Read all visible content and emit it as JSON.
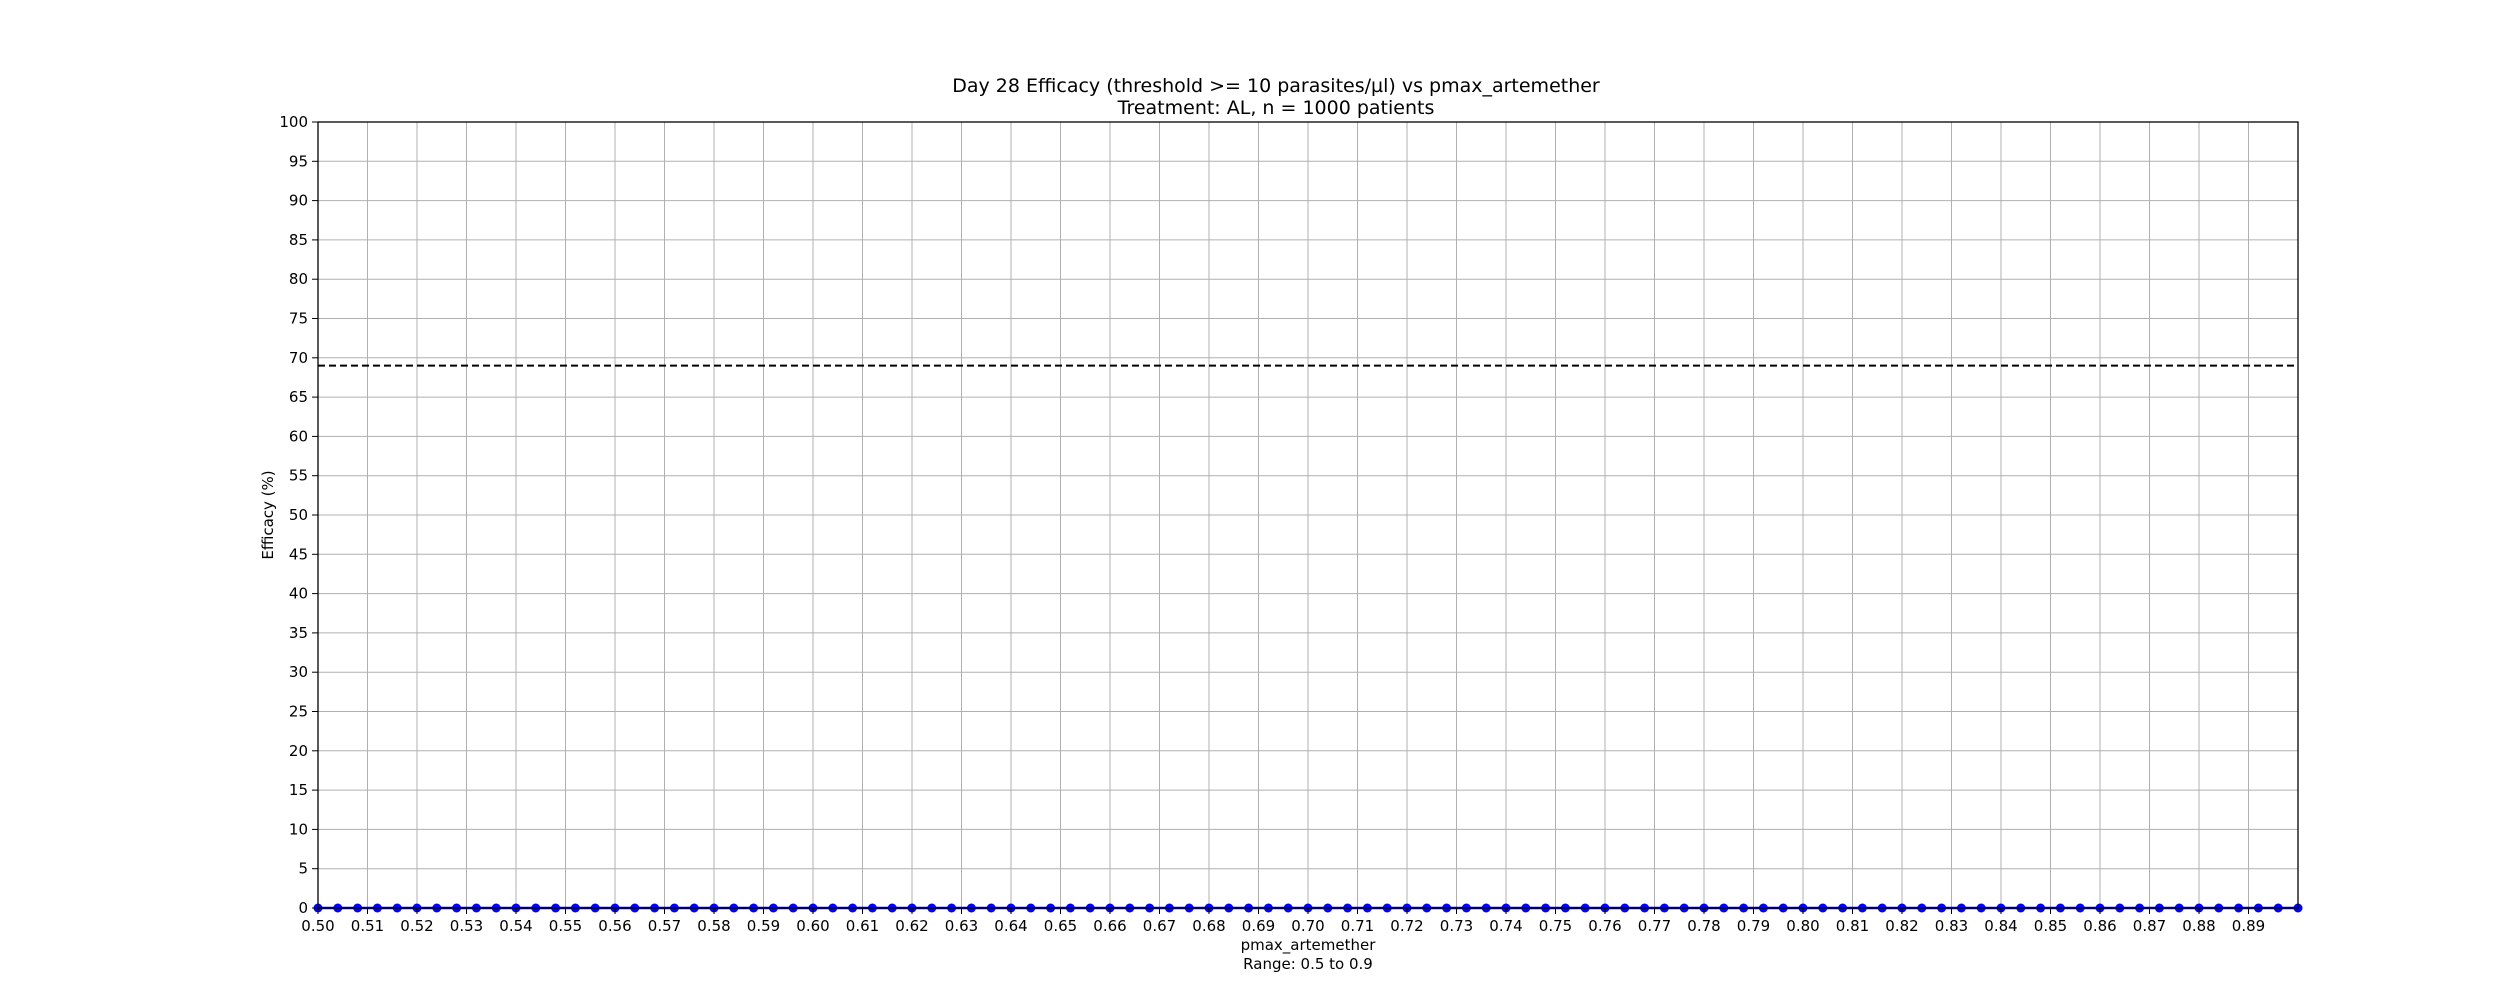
{
  "chart_data": {
    "type": "line",
    "title": "Day 28 Efficacy (threshold >= 10 parasites/µl) vs pmax_artemether",
    "subtitle": "Treatment: AL, n = 1000 patients",
    "xlabel": "pmax_artemether",
    "xlabel_note": "Range: 0.5 to 0.9",
    "ylabel": "Efficacy (%)",
    "xlim": [
      0.5,
      0.9
    ],
    "ylim": [
      0,
      100
    ],
    "x_ticks": [
      0.5,
      0.51,
      0.52,
      0.53,
      0.54,
      0.55,
      0.56,
      0.57,
      0.58,
      0.59,
      0.6,
      0.61,
      0.62,
      0.63,
      0.64,
      0.65,
      0.66,
      0.67,
      0.68,
      0.69,
      0.7,
      0.71,
      0.72,
      0.73,
      0.74,
      0.75,
      0.76,
      0.77,
      0.78,
      0.79,
      0.8,
      0.81,
      0.82,
      0.83,
      0.84,
      0.85,
      0.86,
      0.87,
      0.88,
      0.89
    ],
    "x_tick_labels": [
      "0.50",
      "0.51",
      "0.52",
      "0.53",
      "0.54",
      "0.55",
      "0.56",
      "0.57",
      "0.58",
      "0.59",
      "0.60",
      "0.61",
      "0.62",
      "0.63",
      "0.64",
      "0.65",
      "0.66",
      "0.67",
      "0.68",
      "0.69",
      "0.70",
      "0.71",
      "0.72",
      "0.73",
      "0.74",
      "0.75",
      "0.76",
      "0.77",
      "0.78",
      "0.79",
      "0.80",
      "0.81",
      "0.82",
      "0.83",
      "0.84",
      "0.85",
      "0.86",
      "0.87",
      "0.88",
      "0.89"
    ],
    "y_ticks": [
      0,
      5,
      10,
      15,
      20,
      25,
      30,
      35,
      40,
      45,
      50,
      55,
      60,
      65,
      70,
      75,
      80,
      85,
      90,
      95,
      100
    ],
    "y_tick_labels": [
      "0",
      "5",
      "10",
      "15",
      "20",
      "25",
      "30",
      "35",
      "40",
      "45",
      "50",
      "55",
      "60",
      "65",
      "70",
      "75",
      "80",
      "85",
      "90",
      "95",
      "100"
    ],
    "grid": true,
    "series": [
      {
        "color": "#0000ff",
        "marker": "circle",
        "x": [
          0.5,
          0.504,
          0.508,
          0.512,
          0.516,
          0.52,
          0.524,
          0.528,
          0.532,
          0.536,
          0.54,
          0.544,
          0.548,
          0.552,
          0.556,
          0.56,
          0.564,
          0.568,
          0.572,
          0.576,
          0.58,
          0.584,
          0.588,
          0.592,
          0.596,
          0.6,
          0.604,
          0.608,
          0.612,
          0.616,
          0.62,
          0.624,
          0.628,
          0.632,
          0.636,
          0.64,
          0.644,
          0.648,
          0.652,
          0.656,
          0.66,
          0.664,
          0.668,
          0.672,
          0.676,
          0.68,
          0.684,
          0.688,
          0.692,
          0.696,
          0.7,
          0.704,
          0.708,
          0.712,
          0.716,
          0.72,
          0.724,
          0.728,
          0.732,
          0.736,
          0.74,
          0.744,
          0.748,
          0.752,
          0.756,
          0.76,
          0.764,
          0.768,
          0.772,
          0.776,
          0.78,
          0.784,
          0.788,
          0.792,
          0.796,
          0.8,
          0.804,
          0.808,
          0.812,
          0.816,
          0.82,
          0.824,
          0.828,
          0.832,
          0.836,
          0.84,
          0.844,
          0.848,
          0.852,
          0.856,
          0.86,
          0.864,
          0.868,
          0.872,
          0.876,
          0.88,
          0.884,
          0.888,
          0.892,
          0.896,
          0.9
        ],
        "y": [
          0,
          0,
          0,
          0,
          0,
          0,
          0,
          0,
          0,
          0,
          0,
          0,
          0,
          0,
          0,
          0,
          0,
          0,
          0,
          0,
          0,
          0,
          0,
          0,
          0,
          0,
          0,
          0,
          0,
          0,
          0,
          0,
          0,
          0,
          0,
          0,
          0,
          0,
          0,
          0,
          0,
          0,
          0,
          0,
          0,
          0,
          0,
          0,
          0,
          0,
          0,
          0,
          0,
          0,
          0,
          0,
          0,
          0,
          0,
          0,
          0,
          0,
          0,
          0,
          0,
          0,
          0,
          0,
          0,
          0,
          0,
          0,
          0,
          0,
          0,
          0,
          0,
          0,
          0,
          0,
          0,
          0,
          0,
          0,
          0,
          0,
          0,
          0,
          0,
          0,
          0,
          0,
          0,
          0,
          0,
          0,
          0,
          0,
          0,
          0,
          0
        ]
      }
    ],
    "reference_line": {
      "y": 69,
      "color": "#000000",
      "style": "dashed"
    }
  }
}
